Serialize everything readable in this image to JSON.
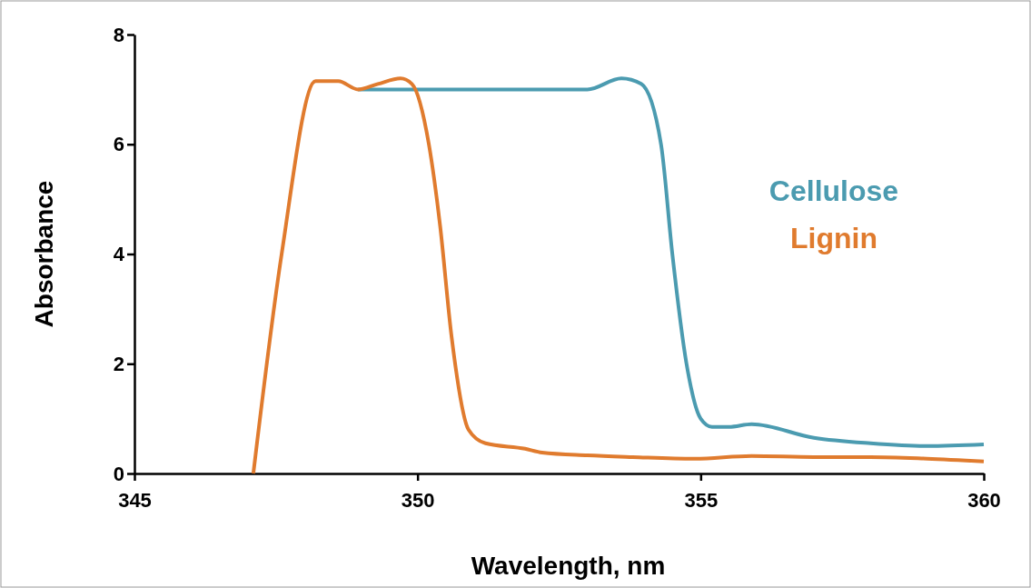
{
  "chart_data": {
    "type": "line",
    "xlabel": "Wavelength, nm",
    "ylabel": "Absorbance",
    "xlim": [
      345,
      360
    ],
    "xticks": [
      345,
      350,
      355,
      360
    ],
    "ylim": [
      0,
      8
    ],
    "yticks": [
      0,
      2,
      4,
      6,
      8
    ],
    "grid": false,
    "legend": "right",
    "marker": "none",
    "line_style": "solid",
    "series": [
      {
        "name": "Cellulose",
        "color": "#4b9bb0",
        "x": [
          348.95,
          349.5,
          350,
          351,
          352,
          353,
          353.6,
          353.95,
          354.3,
          354.5,
          354.75,
          355,
          355.2,
          355.5,
          355.9,
          357,
          358,
          359,
          360
        ],
        "values": [
          7,
          7,
          7,
          7,
          7,
          7,
          7.2,
          7.1,
          6,
          4,
          2,
          1,
          0.85,
          0.85,
          0.9,
          0.65,
          0.55,
          0.5,
          0.53
        ]
      },
      {
        "name": "Lignin",
        "color": "#e07b2e",
        "x": [
          347.1,
          347.6,
          348.2,
          348.6,
          348.95,
          349.3,
          349.7,
          349.9,
          350.2,
          350.4,
          350.6,
          350.9,
          351.2,
          351.9,
          352.2,
          353,
          353.8,
          354.9,
          355.9,
          357,
          358,
          359,
          360
        ],
        "values": [
          0,
          4,
          7.15,
          7.15,
          7,
          7.1,
          7.2,
          7.1,
          6,
          4.5,
          2.5,
          0.8,
          0.55,
          0.45,
          0.38,
          0.33,
          0.3,
          0.27,
          0.32,
          0.3,
          0.3,
          0.27,
          0.22
        ]
      }
    ]
  }
}
